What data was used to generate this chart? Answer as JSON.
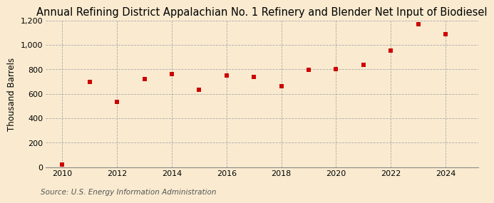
{
  "title": "Annual Refining District Appalachian No. 1 Refinery and Blender Net Input of Biodiesel",
  "ylabel": "Thousand Barrels",
  "source": "Source: U.S. Energy Information Administration",
  "background_color": "#faebd0",
  "years": [
    2010,
    2011,
    2012,
    2013,
    2014,
    2015,
    2016,
    2017,
    2018,
    2019,
    2020,
    2021,
    2022,
    2023,
    2024
  ],
  "values": [
    20,
    695,
    535,
    720,
    760,
    630,
    748,
    738,
    663,
    797,
    800,
    835,
    955,
    1168,
    1090
  ],
  "marker_color": "#cc0000",
  "ylim": [
    0,
    1200
  ],
  "yticks": [
    0,
    200,
    400,
    600,
    800,
    1000,
    1200
  ],
  "xlim": [
    2009.4,
    2025.2
  ],
  "xticks": [
    2010,
    2012,
    2014,
    2016,
    2018,
    2020,
    2022,
    2024
  ],
  "title_fontsize": 10.5,
  "label_fontsize": 8.5,
  "source_fontsize": 7.5,
  "tick_fontsize": 8
}
